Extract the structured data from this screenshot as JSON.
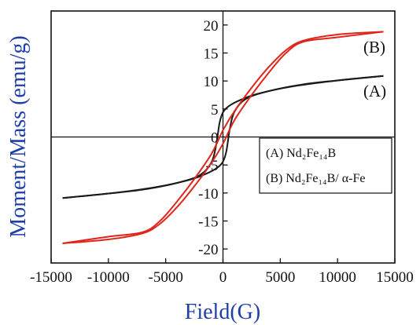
{
  "chart_data": {
    "type": "line",
    "title": "",
    "xlabel": "Field(G)",
    "ylabel": "Moment/Mass (emu/g)",
    "xlim": [
      -15000,
      15000
    ],
    "ylim": [
      -22.5,
      22.5
    ],
    "x_ticks": [
      -15000,
      -10000,
      -5000,
      0,
      5000,
      10000,
      15000
    ],
    "y_ticks": [
      -20,
      -15,
      -10,
      -5,
      0,
      5,
      10,
      15,
      20
    ],
    "x_tick_labels": [
      "-15000",
      "-10000",
      "-5000",
      "0",
      "5000",
      "10000",
      "15000"
    ],
    "y_tick_labels": [
      "-20",
      "-15",
      "-10",
      "-5",
      "0",
      "5",
      "10",
      "15",
      "20"
    ],
    "grid": false,
    "crosshair_axes_through_origin": true,
    "series_tags": [
      {
        "text": "(A)",
        "series": 0
      },
      {
        "text": "(B)",
        "series": 1
      }
    ],
    "legend": {
      "placement": "lower-right",
      "entries": [
        {
          "text": "(A) Nd₂Fe₁₄B"
        },
        {
          "text": "(B) Nd₂Fe₁₄B/ α-Fe"
        }
      ]
    },
    "series": [
      {
        "color": "#1a1a1a",
        "branches": [
          {
            "x": [
              -14000,
              -10000,
              -6000,
              -3000,
              -1500,
              -500,
              0,
              300,
              600,
              1000,
              2000,
              4000,
              7000,
              10000,
              14000
            ],
            "y": [
              -10.9,
              -10.1,
              -9.0,
              -7.7,
              -6.6,
              -5.5,
              -4.4,
              -2.5,
              1.5,
              4.5,
              6.8,
              8.2,
              9.4,
              10.1,
              10.9
            ]
          },
          {
            "x": [
              14000,
              10000,
              6000,
              3000,
              1500,
              500,
              0,
              -300,
              -600,
              -1000,
              -2000,
              -4000,
              -7000,
              -10000,
              -14000
            ],
            "y": [
              10.9,
              10.1,
              9.0,
              7.7,
              6.6,
              5.5,
              4.4,
              2.5,
              -1.5,
              -4.5,
              -6.8,
              -8.2,
              -9.4,
              -10.1,
              -10.9
            ]
          }
        ]
      },
      {
        "color": "#e0251b",
        "branches": [
          {
            "x": [
              -14000,
              -10000,
              -7000,
              -5500,
              -4000,
              -2500,
              -1000,
              0,
              1000,
              2500,
              4000,
              5500,
              7000,
              10000,
              14000
            ],
            "y": [
              -19.0,
              -18.3,
              -17.2,
              -15.5,
              -12.5,
              -8.8,
              -4.6,
              -1.2,
              3.0,
              7.5,
              11.5,
              15.0,
              17.0,
              17.8,
              18.8
            ]
          },
          {
            "x": [
              14000,
              10000,
              7000,
              5500,
              4000,
              2500,
              1000,
              0,
              -1000,
              -2500,
              -4000,
              -5500,
              -7000,
              -10000,
              -14000
            ],
            "y": [
              18.8,
              18.3,
              17.2,
              15.5,
              12.5,
              8.8,
              4.6,
              1.2,
              -3.0,
              -7.5,
              -11.5,
              -15.0,
              -17.0,
              -17.8,
              -19.0
            ]
          }
        ]
      }
    ]
  }
}
